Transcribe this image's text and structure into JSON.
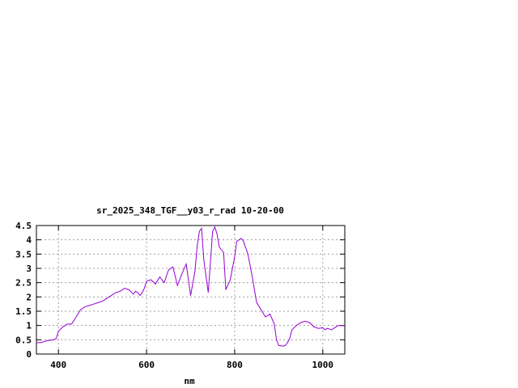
{
  "chart_data": {
    "type": "line",
    "title": "sr_2025_348_TGF__y03_r_rad 10-20-00",
    "xlabel": "nm",
    "ylabel": "",
    "xlim": [
      350,
      1050
    ],
    "ylim": [
      0,
      4.5
    ],
    "x_ticks": [
      400,
      600,
      800,
      1000
    ],
    "x_tick_labels": [
      "400",
      "600",
      "800",
      "1000"
    ],
    "y_ticks": [
      0,
      0.5,
      1,
      1.5,
      2,
      2.5,
      3,
      3.5,
      4,
      4.5
    ],
    "y_tick_labels": [
      "0",
      "0.5",
      "1",
      "1.5",
      "2",
      "2.5",
      "3",
      "3.5",
      "4",
      "4.5"
    ],
    "grid": true,
    "line_color": "#9400d3",
    "series": [
      {
        "x": [
          350,
          360,
          370,
          380,
          390,
          395,
          400,
          410,
          420,
          430,
          440,
          450,
          460,
          470,
          480,
          490,
          500,
          510,
          520,
          530,
          540,
          550,
          560,
          570,
          575,
          580,
          585,
          590,
          595,
          600,
          610,
          620,
          630,
          640,
          650,
          660,
          670,
          680,
          690,
          700,
          710,
          715,
          720,
          725,
          730,
          740,
          750,
          755,
          760,
          765,
          770,
          775,
          780,
          790,
          800,
          805,
          810,
          815,
          820,
          830,
          840,
          850,
          860,
          870,
          880,
          890,
          895,
          900,
          910,
          915,
          920,
          925,
          930,
          940,
          950,
          960,
          970,
          980,
          990,
          1000,
          1005,
          1010,
          1020,
          1025,
          1030,
          1035,
          1040,
          1050
        ],
        "y": [
          0.4,
          0.4,
          0.45,
          0.48,
          0.5,
          0.55,
          0.8,
          0.95,
          1.05,
          1.05,
          1.3,
          1.55,
          1.65,
          1.7,
          1.75,
          1.8,
          1.85,
          1.95,
          2.05,
          2.15,
          2.2,
          2.3,
          2.25,
          2.1,
          2.2,
          2.15,
          2.05,
          2.15,
          2.3,
          2.55,
          2.6,
          2.45,
          2.7,
          2.5,
          2.95,
          3.05,
          2.4,
          2.8,
          3.15,
          2.05,
          2.9,
          3.8,
          4.3,
          4.4,
          3.3,
          2.15,
          4.3,
          4.45,
          4.2,
          3.75,
          3.65,
          3.55,
          2.25,
          2.6,
          3.4,
          3.95,
          4.0,
          4.05,
          3.95,
          3.5,
          2.7,
          1.8,
          1.55,
          1.3,
          1.4,
          1.05,
          0.5,
          0.3,
          0.28,
          0.3,
          0.4,
          0.55,
          0.85,
          1.0,
          1.1,
          1.15,
          1.1,
          0.95,
          0.9,
          0.92,
          0.85,
          0.9,
          0.85,
          0.9,
          0.95,
          1.0,
          1.0,
          1.0
        ]
      }
    ]
  }
}
